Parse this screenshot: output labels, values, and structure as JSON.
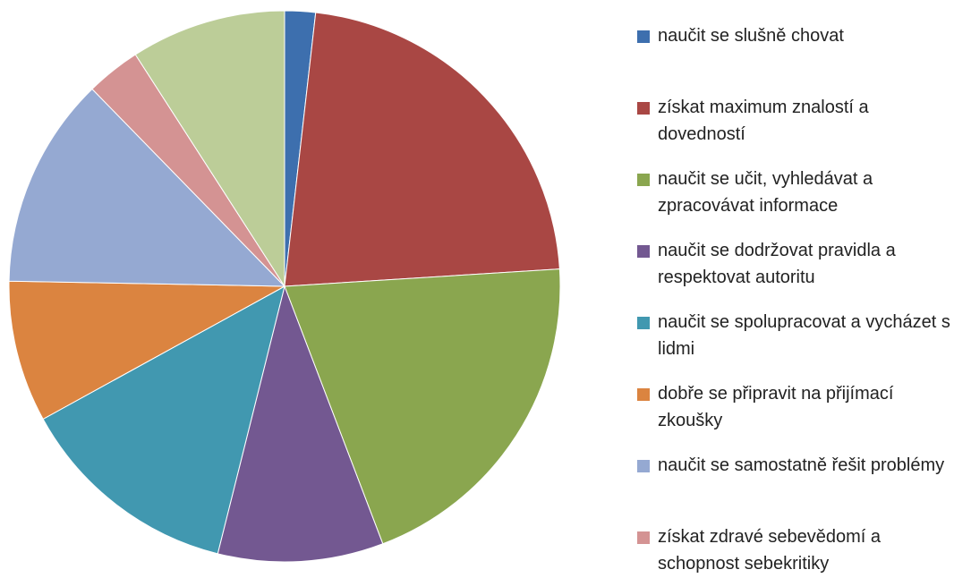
{
  "chart_data": {
    "type": "pie",
    "categories": [
      "naučit se slušně chovat",
      "získat maximum znalostí a dovedností",
      "naučit se učit, vyhledávat a zpracovávat informace",
      "naučit se dodržovat pravidla a respektovat autoritu",
      "naučit se spolupracovat a vycházet s lidmi",
      "dobře se připravit na přijímací zkoušky",
      "naučit se samostatně řešit problémy",
      "získat zdravé sebevědomí a schopnost sebekritiky",
      null
    ],
    "values": [
      1.8,
      22.2,
      20.2,
      9.7,
      13.1,
      8.3,
      12.4,
      3.2,
      9.1
    ],
    "colors": [
      "#3d6fae",
      "#a94744",
      "#8aa64f",
      "#735891",
      "#4198b0",
      "#db8440",
      "#95a9d2",
      "#d49393",
      "#bccd98"
    ],
    "legend": "right"
  }
}
